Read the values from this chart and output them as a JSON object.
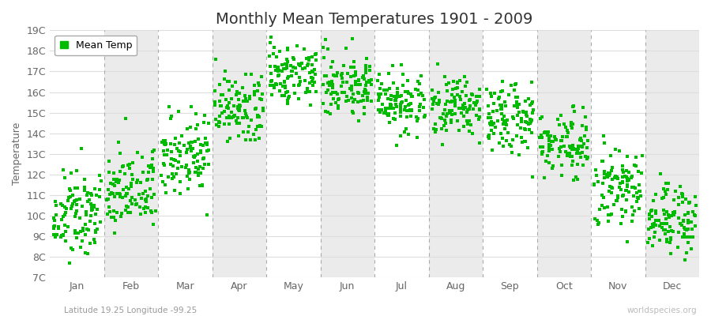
{
  "title": "Monthly Mean Temperatures 1901 - 2009",
  "ylabel": "Temperature",
  "subtitle": "Latitude 19.25 Longitude -99.25",
  "watermark": "worldspecies.org",
  "ylim": [
    7,
    19
  ],
  "ytick_labels": [
    "7C",
    "8C",
    "9C",
    "10C",
    "11C",
    "12C",
    "13C",
    "14C",
    "15C",
    "16C",
    "17C",
    "18C",
    "19C"
  ],
  "ytick_values": [
    7,
    8,
    9,
    10,
    11,
    12,
    13,
    14,
    15,
    16,
    17,
    18,
    19
  ],
  "months": [
    "Jan",
    "Feb",
    "Mar",
    "Apr",
    "May",
    "Jun",
    "Jul",
    "Aug",
    "Sep",
    "Oct",
    "Nov",
    "Dec"
  ],
  "dot_color": "#00BB00",
  "dot_size": 5,
  "bg_color": "#FFFFFF",
  "col_color_odd": "#FFFFFF",
  "col_color_even": "#EBEBEB",
  "dashed_line_color": "#AAAAAA",
  "grid_color": "#DDDDDD",
  "legend_label": "Mean Temp",
  "title_fontsize": 14,
  "label_fontsize": 9,
  "tick_fontsize": 9,
  "monthly_means": [
    10.0,
    11.2,
    13.0,
    15.2,
    16.8,
    16.5,
    15.5,
    15.3,
    14.7,
    13.5,
    11.5,
    9.8
  ],
  "monthly_stds": [
    1.0,
    0.9,
    1.0,
    0.9,
    0.85,
    0.85,
    0.7,
    0.7,
    0.75,
    0.85,
    0.9,
    1.0
  ],
  "years": 109
}
